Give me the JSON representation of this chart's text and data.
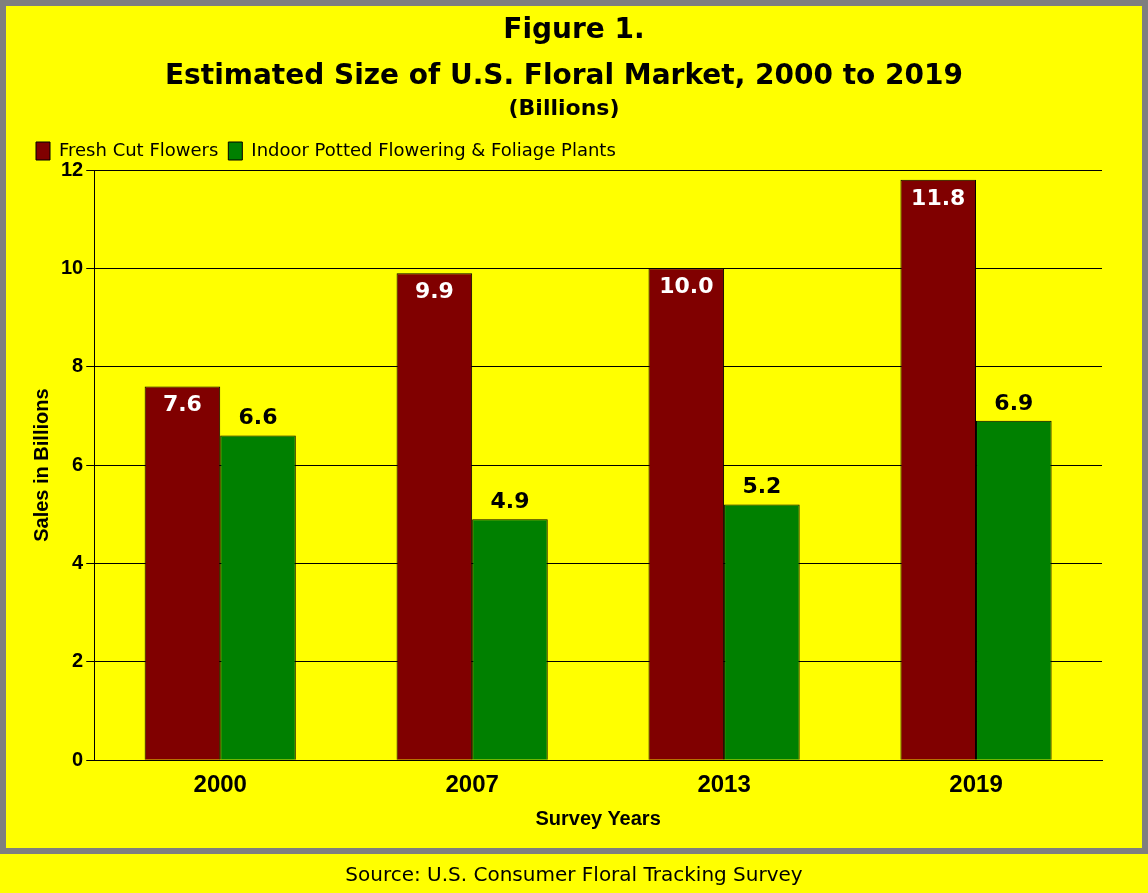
{
  "chart_data": {
    "type": "bar",
    "title": "Estimated Size of U.S. Floral Market, 2000 to 2019",
    "subtitle": "(Billions)",
    "xlabel": "Survey Years",
    "ylabel": "Sales in Billions",
    "categories": [
      "2000",
      "2007",
      "2013",
      "2019"
    ],
    "series": [
      {
        "name": "Fresh Cut Flowers",
        "color": "#800000",
        "values": [
          7.6,
          9.9,
          10.0,
          11.8
        ]
      },
      {
        "name": "Indoor Potted Flowering & Foliage Plants",
        "color": "#008000",
        "values": [
          6.6,
          4.9,
          5.2,
          6.9
        ]
      }
    ],
    "value_labels": [
      [
        "7.6",
        "9.9",
        "10.0",
        "11.8"
      ],
      [
        "6.6",
        "4.9",
        "5.2",
        "6.9"
      ]
    ],
    "ylim": [
      0,
      12
    ],
    "yticks": [
      0,
      2,
      4,
      6,
      8,
      10,
      12
    ],
    "grid": "y",
    "legend": "top left",
    "annotations": [
      "Figure 1.",
      "Source: U.S. Consumer Floral Tracking Survey"
    ]
  }
}
